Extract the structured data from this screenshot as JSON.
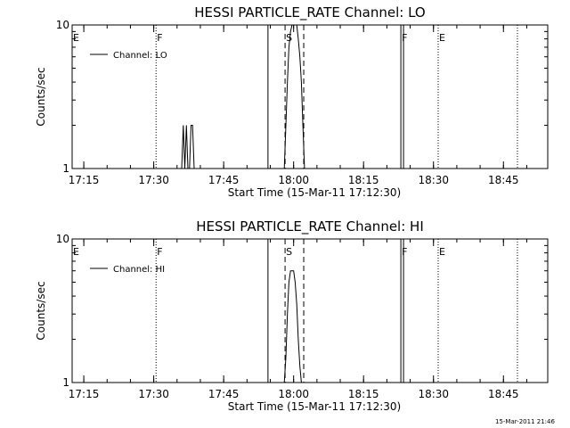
{
  "footer": {
    "timestamp": "15-Mar-2011 21:46"
  },
  "chart_data": [
    {
      "type": "line",
      "title": "HESSI PARTICLE_RATE Channel: LO",
      "xlabel": "Start Time (15-Mar-11 17:12:30)",
      "ylabel": "Counts/sec",
      "yscale": "log",
      "ylim": [
        1,
        10
      ],
      "xlim": [
        "17:12:30",
        "18:54:30"
      ],
      "x_ticks": [
        "17:15",
        "17:30",
        "17:45",
        "18:00",
        "18:15",
        "18:30",
        "18:45"
      ],
      "y_ticks": [
        "1",
        "10"
      ],
      "legend": "top-left",
      "series": [
        {
          "name": "Channel: LO",
          "color": "#000000",
          "points": [
            [
              "17:36:00",
              1
            ],
            [
              "17:36:20",
              2
            ],
            [
              "17:36:40",
              1
            ],
            [
              "17:37:00",
              2
            ],
            [
              "17:37:20",
              1
            ],
            [
              "17:37:40",
              1
            ],
            [
              "17:38:00",
              2
            ],
            [
              "17:38:20",
              2
            ],
            [
              "17:38:40",
              1
            ],
            [
              "17:58:00",
              1
            ],
            [
              "17:58:20",
              2
            ],
            [
              "17:58:40",
              4
            ],
            [
              "17:59:00",
              7
            ],
            [
              "17:59:20",
              9
            ],
            [
              "17:59:40",
              10
            ],
            [
              "18:00:00",
              11
            ],
            [
              "18:00:20",
              11
            ],
            [
              "18:00:40",
              10
            ],
            [
              "18:01:00",
              8
            ],
            [
              "18:01:20",
              6
            ],
            [
              "18:01:40",
              4
            ],
            [
              "18:02:00",
              2
            ],
            [
              "18:02:20",
              1
            ]
          ]
        }
      ],
      "markers": [
        {
          "label": "E",
          "time": "17:12:30",
          "style": "solid"
        },
        {
          "label": "F",
          "time": "17:30:30",
          "style": "dotted"
        },
        {
          "label": "",
          "time": "17:54:30",
          "style": "solid"
        },
        {
          "label": "S",
          "time": "17:58:10",
          "style": "dashed"
        },
        {
          "label": "",
          "time": "18:02:10",
          "style": "dashed"
        },
        {
          "label": "F",
          "time": "18:23:00",
          "style": "double"
        },
        {
          "label": "E",
          "time": "18:31:00",
          "style": "dotted"
        },
        {
          "label": "",
          "time": "18:48:00",
          "style": "dotted"
        }
      ]
    },
    {
      "type": "line",
      "title": "HESSI PARTICLE_RATE Channel: HI",
      "xlabel": "Start Time (15-Mar-11 17:12:30)",
      "ylabel": "Counts/sec",
      "yscale": "log",
      "ylim": [
        1,
        10
      ],
      "xlim": [
        "17:12:30",
        "18:54:30"
      ],
      "x_ticks": [
        "17:15",
        "17:30",
        "17:45",
        "18:00",
        "18:15",
        "18:30",
        "18:45"
      ],
      "y_ticks": [
        "1",
        "10"
      ],
      "legend": "top-left",
      "series": [
        {
          "name": "Channel: HI",
          "color": "#000000",
          "points": [
            [
              "17:58:00",
              1
            ],
            [
              "17:58:20",
              1.5
            ],
            [
              "17:58:40",
              3
            ],
            [
              "17:59:00",
              5
            ],
            [
              "17:59:20",
              6
            ],
            [
              "17:59:40",
              6
            ],
            [
              "18:00:00",
              6
            ],
            [
              "18:00:20",
              5
            ],
            [
              "18:00:40",
              3.5
            ],
            [
              "18:01:00",
              2
            ],
            [
              "18:01:20",
              1.3
            ],
            [
              "18:01:40",
              1
            ]
          ]
        }
      ],
      "markers": [
        {
          "label": "E",
          "time": "17:12:30",
          "style": "solid"
        },
        {
          "label": "F",
          "time": "17:30:30",
          "style": "dotted"
        },
        {
          "label": "",
          "time": "17:54:30",
          "style": "solid"
        },
        {
          "label": "S",
          "time": "17:58:10",
          "style": "dashed"
        },
        {
          "label": "",
          "time": "18:02:10",
          "style": "dashed"
        },
        {
          "label": "F",
          "time": "18:23:00",
          "style": "double"
        },
        {
          "label": "E",
          "time": "18:31:00",
          "style": "dotted"
        },
        {
          "label": "",
          "time": "18:48:00",
          "style": "dotted"
        }
      ]
    }
  ]
}
